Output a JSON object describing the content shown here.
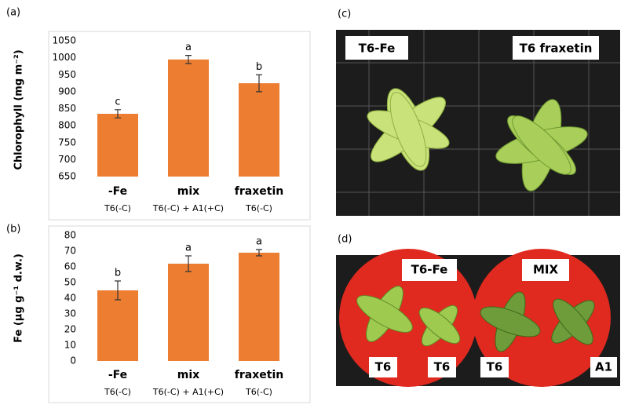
{
  "chart_data": [
    {
      "type": "bar",
      "panel": "(a)",
      "y_label": "Chlorophyll (mg m⁻²)",
      "categories": [
        "-Fe",
        "mix",
        "fraxetin"
      ],
      "subcategories": [
        "T6(-C)",
        "T6(-C) + A1(+C)",
        "T6(-C)"
      ],
      "values": [
        835,
        995,
        925
      ],
      "errors": [
        12,
        12,
        25
      ],
      "annotations": [
        "c",
        "a",
        "b"
      ],
      "color": "#ed7d31",
      "ylim": [
        650,
        1050
      ],
      "yticks": [
        650,
        700,
        750,
        800,
        850,
        900,
        950,
        1000,
        1050
      ]
    },
    {
      "type": "bar",
      "panel": "(b)",
      "y_label": "Fe (µg g⁻¹ d.w.)",
      "categories": [
        "-Fe",
        "mix",
        "fraxetin"
      ],
      "subcategories": [
        "T6(-C)",
        "T6(-C) + A1(+C)",
        "T6(-C)"
      ],
      "values": [
        45,
        62,
        69
      ],
      "errors": [
        6,
        5,
        2
      ],
      "annotations": [
        "b",
        "a",
        "a"
      ],
      "color": "#ed7d31",
      "ylim": [
        0,
        80
      ],
      "yticks": [
        0,
        10,
        20,
        30,
        40,
        50,
        60,
        70,
        80
      ]
    }
  ],
  "panels": [
    {
      "label": "(c)",
      "tags": [
        "T6-Fe",
        "T6 fraxetin"
      ]
    },
    {
      "label": "(d)",
      "tags": [
        "T6-Fe",
        "MIX",
        "T6",
        "T6",
        "T6",
        "A1"
      ]
    }
  ]
}
